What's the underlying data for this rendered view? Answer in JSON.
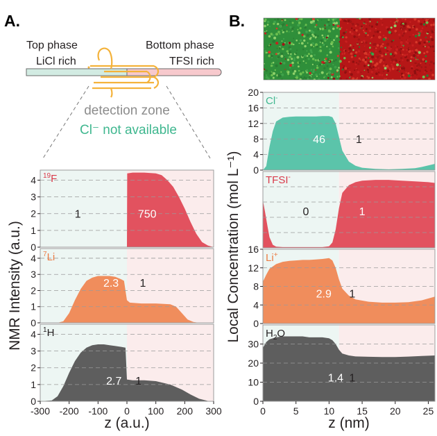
{
  "panels": {
    "a": "A.",
    "b": "B."
  },
  "schematic": {
    "top_phase": "Top phase",
    "top_phase_sub": "LiCl rich",
    "bottom_phase": "Bottom phase",
    "bottom_phase_sub": "TFSI rich",
    "detection_zone": "detection zone",
    "cl_not_available": "Cl⁻ not available"
  },
  "colors": {
    "F": "#e2525f",
    "Li": "#f08d5c",
    "H": "#5e5e5e",
    "Cl": "#5bc4aa",
    "green_bg": "#edf6f3",
    "pink_bg": "#fbecec",
    "coil": "#f4b23a",
    "grid": "#9a9a9a",
    "frame": "#9b9b9b",
    "sim_green": "#2f8f3a",
    "sim_red": "#b61717"
  },
  "chart_data": [
    {
      "type": "area",
      "panel": "A",
      "xlabel": "z (a.u.)",
      "ylabel": "NMR Intensity (a.u.)",
      "xlim": [
        -300,
        300
      ],
      "xticks": [
        "-300",
        "-200",
        "-100",
        "0",
        "100",
        "200",
        "300"
      ],
      "xtick_values": [
        -300,
        -200,
        -100,
        0,
        100,
        200,
        300
      ],
      "boundary_x": 0,
      "subplots": [
        {
          "name": "19F",
          "label_sup": "19",
          "label_main": "F",
          "color_key": "F",
          "ylim": [
            0,
            4.6
          ],
          "yticks": [
            "0",
            "1",
            "2",
            "3",
            "4"
          ],
          "ytick_values": [
            0,
            1,
            2,
            3,
            4
          ],
          "annotations": [
            {
              "text": "1",
              "x": -170,
              "y": 2.0,
              "color": "dark"
            },
            {
              "text": "750",
              "x": 70,
              "y": 2.0,
              "color": "white"
            }
          ],
          "x": [
            -300,
            -1,
            0,
            1,
            20,
            60,
            100,
            120,
            140,
            160,
            180,
            200,
            220,
            240,
            260,
            280,
            300
          ],
          "y": [
            0,
            0,
            0,
            4.4,
            4.45,
            4.45,
            4.4,
            4.3,
            4.0,
            3.6,
            3.0,
            2.3,
            1.5,
            0.8,
            0.3,
            0.1,
            0
          ]
        },
        {
          "name": "7Li",
          "label_sup": "7",
          "label_main": "Li",
          "color_key": "Li",
          "ylim": [
            0,
            4.6
          ],
          "yticks": [
            "0",
            "1",
            "2",
            "3",
            "4"
          ],
          "ytick_values": [
            0,
            1,
            2,
            3,
            4
          ],
          "annotations": [
            {
              "text": "2.3",
              "x": -55,
              "y": 2.5,
              "color": "white"
            },
            {
              "text": "1",
              "x": 55,
              "y": 2.5,
              "color": "dark"
            }
          ],
          "x": [
            -300,
            -240,
            -220,
            -200,
            -180,
            -160,
            -140,
            -120,
            -100,
            -80,
            -60,
            -40,
            -20,
            -10,
            0,
            10,
            50,
            100,
            150,
            170,
            190,
            210,
            230,
            250,
            300
          ],
          "y": [
            0,
            0,
            0.1,
            0.6,
            1.4,
            2.1,
            2.6,
            2.8,
            2.9,
            2.9,
            2.9,
            2.85,
            2.7,
            2.6,
            1.4,
            1.25,
            1.2,
            1.2,
            1.15,
            1.0,
            0.6,
            0.2,
            0.05,
            0,
            0
          ]
        },
        {
          "name": "1H",
          "label_sup": "1",
          "label_main": "H",
          "color_key": "H",
          "ylim": [
            0,
            4.6
          ],
          "yticks": [
            "0",
            "1",
            "2",
            "3",
            "4"
          ],
          "ytick_values": [
            0,
            1,
            2,
            3,
            4
          ],
          "annotations": [
            {
              "text": "2.7",
              "x": -45,
              "y": 1.25,
              "color": "white"
            },
            {
              "text": "1",
              "x": 40,
              "y": 1.25,
              "color": "dark"
            }
          ],
          "x": [
            -300,
            -260,
            -240,
            -220,
            -200,
            -180,
            -160,
            -140,
            -120,
            -100,
            -80,
            -60,
            -40,
            -20,
            -5,
            0,
            20,
            60,
            100,
            150,
            190,
            220,
            250,
            280,
            300
          ],
          "y": [
            0,
            0.05,
            0.3,
            0.9,
            1.7,
            2.4,
            2.9,
            3.2,
            3.35,
            3.4,
            3.4,
            3.35,
            3.3,
            3.25,
            3.2,
            1.3,
            1.25,
            1.25,
            1.2,
            1.0,
            0.7,
            0.4,
            0.15,
            0.02,
            0
          ]
        }
      ]
    },
    {
      "type": "area",
      "panel": "B",
      "xlabel": "z (nm)",
      "ylabel": "Local Concentration (mol L⁻¹)",
      "xlim": [
        0,
        26
      ],
      "xticks": [
        "0",
        "5",
        "10",
        "15",
        "20",
        "25"
      ],
      "xtick_values": [
        0,
        5,
        10,
        15,
        20,
        25
      ],
      "boundary_x": 11.5,
      "subplots": [
        {
          "name": "Cl-",
          "label_main": "Cl",
          "label_sup": "-",
          "color_key": "Cl",
          "ylim": [
            0,
            20
          ],
          "yticks": [
            "0",
            "4",
            "8",
            "12",
            "16",
            "20"
          ],
          "ytick_values": [
            0,
            4,
            8,
            12,
            16,
            20
          ],
          "annotations": [
            {
              "text": "46",
              "x": 8.5,
              "y": 8.0,
              "color": "white"
            },
            {
              "text": "1",
              "x": 14.5,
              "y": 8.0,
              "color": "dark"
            }
          ],
          "x": [
            0,
            0.5,
            1,
            1.5,
            2,
            3,
            4,
            5,
            6,
            7,
            8,
            9,
            10,
            10.5,
            11,
            11.5,
            12,
            13,
            14,
            15,
            17,
            19,
            21,
            23,
            24,
            25,
            26
          ],
          "y": [
            0,
            1,
            6,
            10,
            12.5,
            13.5,
            13.7,
            13.8,
            13.8,
            13.8,
            13.8,
            13.9,
            13.9,
            13.6,
            12,
            8.5,
            5,
            2.2,
            1.1,
            0.6,
            0.3,
            0.2,
            0.3,
            0.5,
            0.8,
            1.2,
            1.6
          ]
        },
        {
          "name": "TFSI-",
          "label_main": "TFSI",
          "label_sup": "-",
          "color_key": "F",
          "ylim": [
            0,
            5
          ],
          "yticks": [],
          "ytick_values": [],
          "annotations": [
            {
              "text": "0",
              "x": 6.5,
              "y": 2.4,
              "color": "dark"
            },
            {
              "text": "1",
              "x": 15,
              "y": 2.4,
              "color": "white"
            }
          ],
          "x": [
            0,
            0.3,
            0.7,
            1,
            1.5,
            2,
            3,
            5,
            7,
            9,
            10,
            10.5,
            11,
            11.5,
            12,
            13,
            14,
            15,
            17,
            19,
            21,
            23,
            25,
            26
          ],
          "y": [
            3.1,
            2.4,
            1.4,
            0.7,
            0.2,
            0.08,
            0.05,
            0.05,
            0.05,
            0.05,
            0.1,
            0.35,
            1.2,
            2.6,
            3.6,
            4.1,
            4.3,
            4.4,
            4.45,
            4.45,
            4.4,
            4.35,
            4.3,
            4.25
          ]
        },
        {
          "name": "Li+",
          "label_main": "Li",
          "label_sup": "+",
          "color_key": "Li",
          "ylim": [
            0,
            16
          ],
          "yticks": [
            "0",
            "4",
            "8",
            "12",
            "16"
          ],
          "ytick_values": [
            0,
            4,
            8,
            12,
            16
          ],
          "annotations": [
            {
              "text": "2.9",
              "x": 9.2,
              "y": 6.5,
              "color": "white"
            },
            {
              "text": "1",
              "x": 13.5,
              "y": 6.5,
              "color": "dark"
            }
          ],
          "x": [
            0,
            0.5,
            1,
            2,
            3,
            4,
            5,
            6,
            7,
            8,
            9,
            10,
            10.5,
            11,
            11.5,
            12,
            13,
            14,
            16,
            18,
            20,
            22,
            24,
            26
          ],
          "y": [
            9,
            10.5,
            11.8,
            12.8,
            13.3,
            13.5,
            13.6,
            13.7,
            13.7,
            13.8,
            13.9,
            14.1,
            13.6,
            12,
            9.5,
            7.5,
            6.0,
            5.2,
            4.7,
            4.5,
            4.5,
            4.6,
            5.0,
            5.8
          ]
        },
        {
          "name": "H2O",
          "label_main": "H",
          "label_sub": "2",
          "label_after": "O",
          "color_key": "H",
          "ylim": [
            0,
            40
          ],
          "yticks": [
            "0",
            "10",
            "20",
            "30"
          ],
          "ytick_values": [
            0,
            10,
            20,
            30
          ],
          "annotations": [
            {
              "text": "1.4",
              "x": 11.0,
              "y": 12.5,
              "color": "white"
            },
            {
              "text": "1",
              "x": 13.5,
              "y": 12.5,
              "color": "dark"
            }
          ],
          "x": [
            0,
            0.5,
            1,
            2,
            3,
            4,
            5,
            6,
            7,
            8,
            9,
            10,
            10.5,
            11,
            11.5,
            12,
            13,
            14,
            16,
            18,
            20,
            22,
            24,
            26
          ],
          "y": [
            28,
            31,
            32.5,
            33.5,
            34,
            34,
            34,
            34,
            33.5,
            33.5,
            33.5,
            33,
            32,
            30,
            27,
            25,
            24,
            23.5,
            23.3,
            23.2,
            23.2,
            23.4,
            23.7,
            24
          ]
        }
      ]
    }
  ]
}
